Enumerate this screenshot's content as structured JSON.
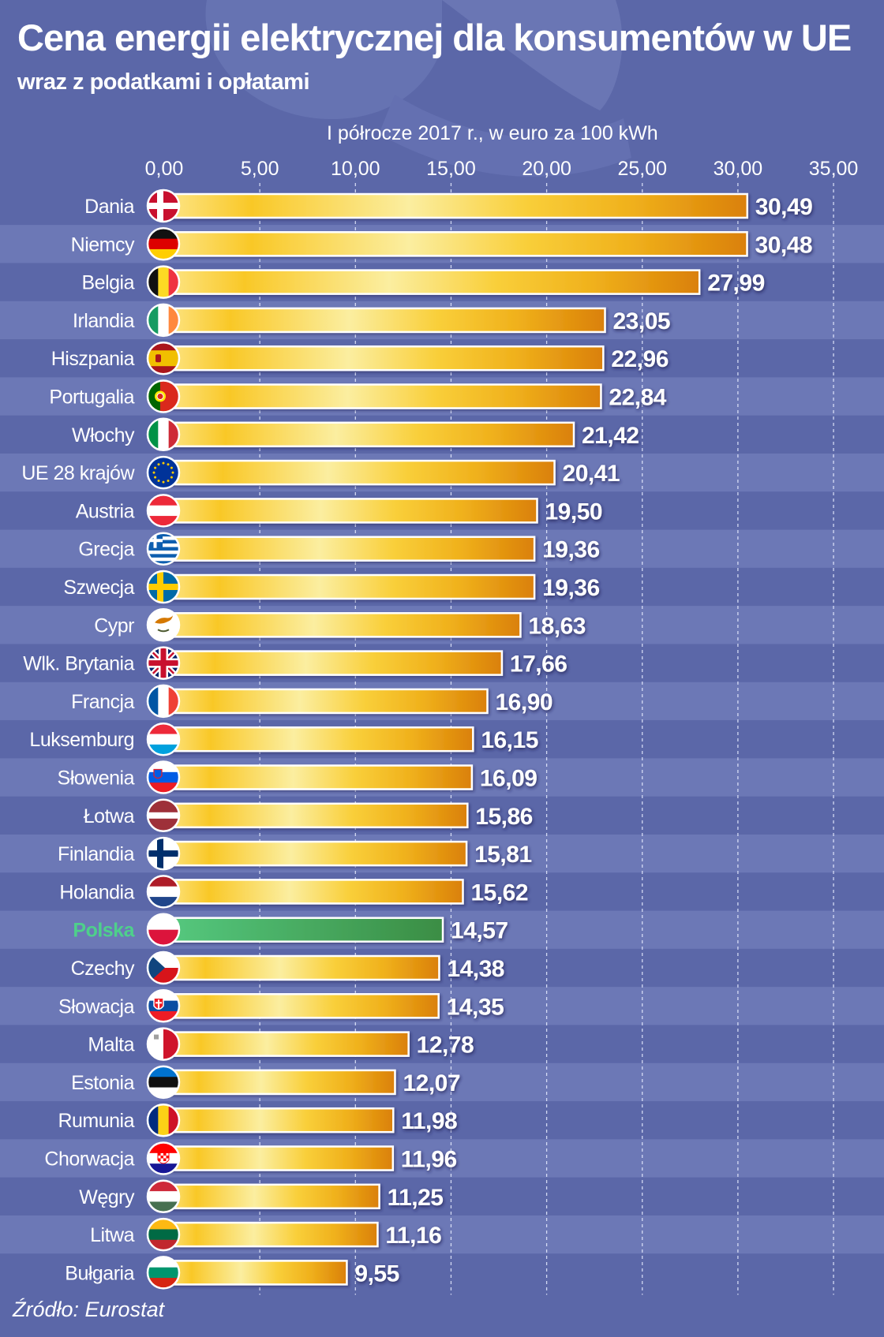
{
  "title": "Cena energii elektrycznej dla konsumentów w UE",
  "subtitle": "wraz z podatkami i opłatami",
  "unit_label": "I półrocze 2017 r., w euro za 100 kWh",
  "source": "Źródło: Eurostat",
  "colors": {
    "background": "#5b67a8",
    "stripe": "#6c78b6",
    "bar_light": "#fbeea0",
    "bar_mid": "#f9c827",
    "bar_top": "#da8008",
    "highlight_bar": "#3e9a4c",
    "highlight_label": "#4ed08b",
    "text": "#ffffff"
  },
  "chart_data": {
    "type": "bar",
    "orientation": "horizontal",
    "xlim": [
      0,
      35
    ],
    "xticks": [
      "0,00",
      "5,00",
      "10,00",
      "15,00",
      "20,00",
      "25,00",
      "30,00",
      "35,00"
    ],
    "grid": "vertical dashed",
    "highlight": "Polska",
    "categories": [
      "Dania",
      "Niemcy",
      "Belgia",
      "Irlandia",
      "Hiszpania",
      "Portugalia",
      "Włochy",
      "UE 28 krajów",
      "Austria",
      "Grecja",
      "Szwecja",
      "Cypr",
      "Wlk. Brytania",
      "Francja",
      "Luksemburg",
      "Słowenia",
      "Łotwa",
      "Finlandia",
      "Holandia",
      "Polska",
      "Czechy",
      "Słowacja",
      "Malta",
      "Estonia",
      "Rumunia",
      "Chorwacja",
      "Węgry",
      "Litwa",
      "Bułgaria"
    ],
    "values": [
      30.49,
      30.48,
      27.99,
      23.05,
      22.96,
      22.84,
      21.42,
      20.41,
      19.5,
      19.36,
      19.36,
      18.63,
      17.66,
      16.9,
      16.15,
      16.09,
      15.86,
      15.81,
      15.62,
      14.57,
      14.38,
      14.35,
      12.78,
      12.07,
      11.98,
      11.96,
      11.25,
      11.16,
      9.55
    ],
    "value_labels": [
      "30,49",
      "30,48",
      "27,99",
      "23,05",
      "22,96",
      "22,84",
      "21,42",
      "20,41",
      "19,50",
      "19,36",
      "19,36",
      "18,63",
      "17,66",
      "16,90",
      "16,15",
      "16,09",
      "15,86",
      "15,81",
      "15,62",
      "14,57",
      "14,38",
      "14,35",
      "12,78",
      "12,07",
      "11,98",
      "11,96",
      "11,25",
      "11,16",
      "9,55"
    ],
    "flags": [
      "denmark-flag",
      "germany-flag",
      "belgium-flag",
      "ireland-flag",
      "spain-flag",
      "portugal-flag",
      "italy-flag",
      "eu-flag",
      "austria-flag",
      "greece-flag",
      "sweden-flag",
      "cyprus-flag",
      "uk-flag",
      "france-flag",
      "luxembourg-flag",
      "slovenia-flag",
      "latvia-flag",
      "finland-flag",
      "netherlands-flag",
      "poland-flag",
      "czechia-flag",
      "slovakia-flag",
      "malta-flag",
      "estonia-flag",
      "romania-flag",
      "croatia-flag",
      "hungary-flag",
      "lithuania-flag",
      "bulgaria-flag"
    ]
  }
}
